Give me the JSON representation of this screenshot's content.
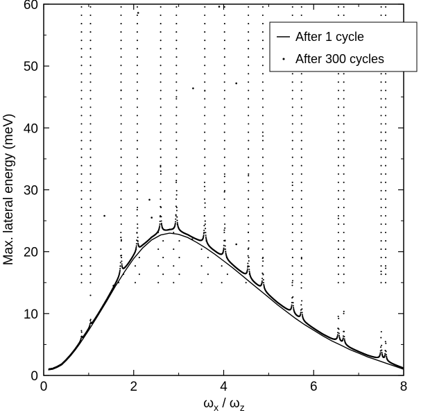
{
  "chart_data": {
    "type": "line",
    "xlabel": {
      "parts": [
        "ω",
        "x",
        " / ω",
        "z"
      ]
    },
    "ylabel": "Max. lateral energy (meV)",
    "xlim": [
      0,
      8
    ],
    "ylim": [
      0,
      60
    ],
    "x_ticks": [
      0,
      2,
      4,
      6,
      8
    ],
    "y_ticks": [
      0,
      10,
      20,
      30,
      40,
      50,
      60
    ],
    "legend_placement": "top-right",
    "series": [
      {
        "name": "After 1 cycle",
        "style": "line",
        "color": "#000000",
        "x": [
          0.1,
          0.2,
          0.3,
          0.4,
          0.5,
          0.6,
          0.7,
          0.8,
          0.9,
          1.0,
          1.2,
          1.4,
          1.6,
          1.8,
          2.0,
          2.2,
          2.4,
          2.6,
          2.8,
          3.0,
          3.2,
          3.4,
          3.6,
          3.8,
          4.0,
          4.2,
          4.4,
          4.6,
          4.8,
          5.0,
          5.2,
          5.4,
          5.6,
          5.8,
          6.0,
          6.2,
          6.4,
          6.6,
          6.8,
          7.0,
          7.2,
          7.4,
          7.6,
          7.8,
          8.0
        ],
        "y": [
          0.9,
          1.0,
          1.3,
          1.7,
          2.4,
          3.2,
          4.1,
          5.1,
          6.2,
          7.3,
          9.6,
          12.0,
          14.5,
          16.8,
          18.9,
          20.6,
          21.9,
          22.7,
          23.0,
          22.8,
          22.3,
          21.5,
          20.6,
          19.6,
          18.5,
          17.4,
          16.2,
          15.0,
          13.8,
          12.6,
          11.4,
          10.3,
          9.2,
          8.2,
          7.3,
          6.4,
          5.6,
          4.9,
          4.2,
          3.6,
          3.0,
          2.5,
          2.0,
          1.5,
          1.0
        ]
      },
      {
        "name": "After 300 cycles",
        "style": "dots",
        "color": "#000000",
        "resonances": [
          {
            "x0": 0.84,
            "b": 0.004
          },
          {
            "x0": 1.04,
            "b": 0.005
          },
          {
            "x0": 1.72,
            "b": 0.03
          },
          {
            "x0": 2.08,
            "b": 0.025
          },
          {
            "x0": 2.6,
            "b": 0.03
          },
          {
            "x0": 2.95,
            "b": 0.035
          },
          {
            "x0": 3.58,
            "b": 0.04
          },
          {
            "x0": 4.02,
            "b": 0.035
          },
          {
            "x0": 4.55,
            "b": 0.03
          },
          {
            "x0": 4.87,
            "b": 0.025
          },
          {
            "x0": 5.53,
            "b": 0.025
          },
          {
            "x0": 5.73,
            "b": 0.02
          },
          {
            "x0": 6.55,
            "b": 0.02
          },
          {
            "x0": 6.67,
            "b": 0.015
          },
          {
            "x0": 7.5,
            "b": 0.02
          },
          {
            "x0": 7.6,
            "b": 0.015
          }
        ],
        "scattered_points": [
          {
            "x": 1.35,
            "y": 25.8
          },
          {
            "x": 2.35,
            "y": 28.4
          },
          {
            "x": 2.4,
            "y": 25.5
          },
          {
            "x": 3.32,
            "y": 46.4
          },
          {
            "x": 4.28,
            "y": 47.2
          },
          {
            "x": 4.28,
            "y": 21.2
          },
          {
            "x": 3.3,
            "y": 22.0
          },
          {
            "x": 1.55,
            "y": 14.5
          },
          {
            "x": 2.1,
            "y": 58.6
          },
          {
            "x": 3.9,
            "y": 59.6
          }
        ]
      }
    ]
  }
}
